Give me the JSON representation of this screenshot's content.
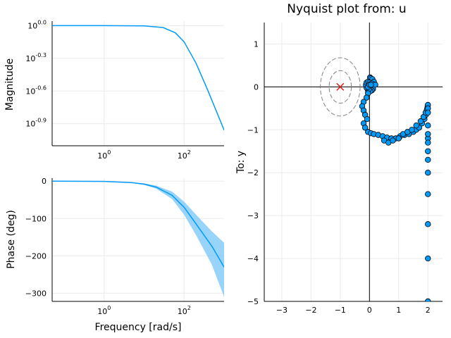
{
  "colors": {
    "series": "#009af9",
    "band": "#75c5f7",
    "critical": "#e01c1c",
    "circle": "#808080",
    "grid": "#ebebeb",
    "axis": "#000000"
  },
  "chart_data": [
    {
      "type": "line",
      "panel": "bode-magnitude",
      "title": "",
      "xlabel": "",
      "ylabel": "Magnitude",
      "xscale": "log",
      "yscale": "log",
      "xlim": [
        0.05,
        1000
      ],
      "ylim": [
        0.079,
        1.1
      ],
      "xticks": [
        {
          "base": "10",
          "exp": "0",
          "value": 1
        },
        {
          "base": "10",
          "exp": "2",
          "value": 100
        }
      ],
      "yticks": [
        {
          "base": "10",
          "exp": "0.0",
          "value": 1.0
        },
        {
          "base": "10",
          "exp": "-0.3",
          "value": 0.501
        },
        {
          "base": "10",
          "exp": "-0.6",
          "value": 0.251
        },
        {
          "base": "10",
          "exp": "-0.9",
          "value": 0.126
        }
      ],
      "grid": true,
      "series": [
        {
          "x": [
            0.05,
            1,
            10,
            30,
            60,
            100,
            200,
            400,
            1000
          ],
          "y": [
            1.0,
            1.0,
            0.995,
            0.96,
            0.86,
            0.71,
            0.45,
            0.25,
            0.11
          ]
        }
      ]
    },
    {
      "type": "area",
      "panel": "bode-phase",
      "title": "",
      "xlabel": "Frequency [rad/s]",
      "ylabel": "Phase (deg)",
      "xscale": "log",
      "xlim": [
        0.05,
        1000
      ],
      "ylim": [
        -322,
        8
      ],
      "xticks": [
        {
          "base": "10",
          "exp": "0",
          "value": 1
        },
        {
          "base": "10",
          "exp": "2",
          "value": 100
        }
      ],
      "yticks": [
        0,
        -100,
        -200,
        -300
      ],
      "grid": true,
      "series": [
        {
          "x": [
            0.05,
            1,
            5,
            10,
            20,
            50,
            100,
            200,
            500,
            1000
          ],
          "y": [
            0,
            -0.8,
            -4,
            -8,
            -16,
            -38,
            -70,
            -115,
            -175,
            -230
          ],
          "lower": [
            0,
            -0.9,
            -5,
            -10,
            -20,
            -48,
            -90,
            -145,
            -225,
            -310
          ],
          "upper": [
            0,
            -0.7,
            -3,
            -6,
            -12,
            -28,
            -55,
            -90,
            -135,
            -165
          ]
        }
      ]
    },
    {
      "type": "scatter",
      "panel": "nyquist",
      "title": "Nyquist plot from: u",
      "xlabel": "",
      "ylabel": "To: y",
      "xlim": [
        -3.6,
        2.5
      ],
      "ylim": [
        -5,
        1.5
      ],
      "xticks": [
        -3,
        -2,
        -1,
        0,
        1,
        2
      ],
      "yticks": [
        1,
        0,
        -1,
        -2,
        -3,
        -4,
        -5
      ],
      "grid": true,
      "critical_point": [
        -1,
        0
      ],
      "circles": [
        {
          "cx": -1,
          "cy": 0,
          "r": 0.38
        },
        {
          "cx": -1,
          "cy": 0,
          "r": 0.68
        }
      ],
      "series": [
        {
          "x": [
            0.02,
            0.05,
            0.1,
            0.15,
            0.15,
            0.1,
            0.05,
            0.0,
            -0.05,
            -0.1,
            -0.12,
            -0.1,
            -0.05,
            0.0,
            0.05,
            0.1,
            0.12,
            0.08,
            0.03,
            -0.02,
            -0.05,
            0.0,
            0.08,
            0.2,
            0.05,
            -0.05,
            -0.1,
            -0.2,
            -0.25,
            -0.2,
            -0.15,
            -0.08,
            -0.2,
            -0.15,
            -0.05,
            0.05,
            0.15,
            0.3,
            0.45,
            0.6,
            0.75,
            0.9,
            1.05,
            1.2,
            1.35,
            1.5,
            1.6,
            1.7,
            1.8,
            1.88,
            1.93,
            1.96,
            1.98,
            1.99,
            2.0,
            0.5,
            0.65,
            0.8,
            1.0,
            1.15,
            1.3,
            1.45,
            1.6,
            1.75,
            1.85,
            1.92,
            1.97,
            2.0,
            2.0,
            2.0,
            2.0,
            2.0,
            2.0,
            2.0,
            2.0,
            2.0,
            2.0,
            2.0,
            2.0,
            2.0
          ],
          "y": [
            0.22,
            0.2,
            0.18,
            0.12,
            0.05,
            0.0,
            -0.05,
            -0.1,
            -0.08,
            -0.02,
            0.05,
            0.1,
            0.12,
            0.1,
            0.05,
            0.0,
            -0.05,
            -0.08,
            -0.1,
            -0.05,
            0.0,
            0.05,
            0.08,
            0.05,
            0.05,
            -0.15,
            -0.25,
            -0.35,
            -0.45,
            -0.55,
            -0.65,
            -0.75,
            -0.85,
            -0.95,
            -1.05,
            -1.08,
            -1.1,
            -1.12,
            -1.15,
            -1.18,
            -1.2,
            -1.2,
            -1.15,
            -1.12,
            -1.1,
            -1.05,
            -1.0,
            -0.95,
            -0.85,
            -0.75,
            -0.65,
            -0.55,
            -0.5,
            -0.45,
            -0.42,
            -1.25,
            -1.3,
            -1.25,
            -1.2,
            -1.1,
            -1.05,
            -1.0,
            -0.9,
            -0.8,
            -0.7,
            -0.6,
            -0.52,
            -0.5,
            -0.9,
            -1.2,
            -1.3,
            -1.5,
            -1.7,
            -2.0,
            -2.5,
            -3.2,
            -4.0,
            -5.0,
            -1.1,
            -0.6
          ]
        }
      ]
    }
  ]
}
